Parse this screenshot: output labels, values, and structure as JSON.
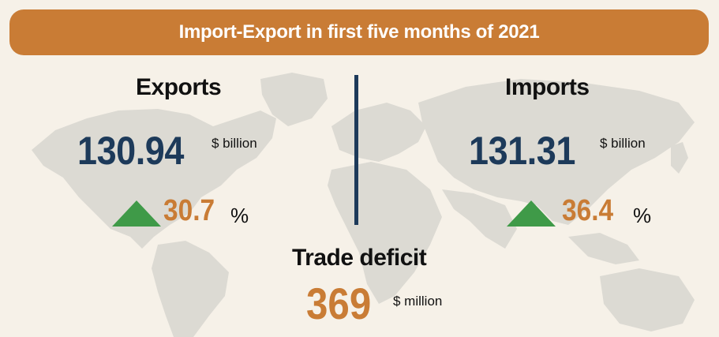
{
  "title": "Import-Export in first five months of 2021",
  "exports": {
    "label": "Exports",
    "value": "130.94",
    "unit": "$ billion",
    "growth": "30.7",
    "growth_unit": "%",
    "trend_icon": "up-triangle-icon"
  },
  "imports": {
    "label": "Imports",
    "value": "131.31",
    "unit": "$ billion",
    "growth": "36.4",
    "growth_unit": "%",
    "trend_icon": "up-triangle-icon"
  },
  "trade_deficit": {
    "label": "Trade deficit",
    "value": "369",
    "unit": "$ million"
  },
  "colors": {
    "background": "#f6f1e8",
    "title_bar": "#c97c35",
    "map": "#dcdad3",
    "navy": "#1d3a5a",
    "orange": "#c97c35",
    "green": "#3f9a48",
    "divider": "#1d3a5a"
  }
}
